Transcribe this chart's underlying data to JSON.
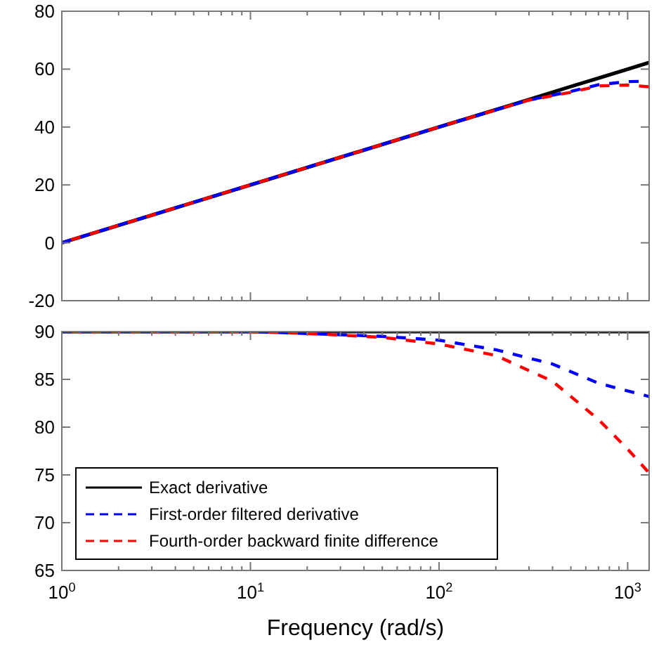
{
  "chart_data": [
    {
      "type": "line",
      "log": "x",
      "xlim": [
        1,
        1300
      ],
      "ylim": [
        -20,
        80
      ],
      "xticks": [
        {
          "value": 1,
          "label": null
        },
        {
          "value": 10,
          "label": null
        },
        {
          "value": 100,
          "label": null
        },
        {
          "value": 1000,
          "label": null
        }
      ],
      "yticks": [
        -20,
        0,
        20,
        40,
        60,
        80
      ],
      "tick_labels": "y",
      "grid": false,
      "legend": false,
      "series": [
        {
          "color": "#000000",
          "line_style": "solid",
          "x": [
            1,
            10,
            100,
            300,
            500,
            700,
            1000,
            1300
          ],
          "values": [
            0,
            20,
            40,
            49.5,
            54,
            56.9,
            60,
            62.3
          ]
        },
        {
          "color": "#0000ff",
          "line_style": "dashed",
          "x": [
            1,
            10,
            100,
            200,
            300,
            500,
            700,
            1000,
            1300
          ],
          "values": [
            0,
            20,
            40,
            45.9,
            49.3,
            52.3,
            54.6,
            55.7,
            55.8
          ]
        },
        {
          "color": "#ff0000",
          "line_style": "dashed",
          "x": [
            1,
            10,
            100,
            200,
            300,
            500,
            700,
            1000,
            1300
          ],
          "values": [
            0,
            20,
            40,
            45.9,
            49.3,
            52,
            54.2,
            54.5,
            53.9
          ]
        }
      ]
    },
    {
      "type": "line",
      "log": "x",
      "xlim": [
        1,
        1300
      ],
      "ylim": [
        65,
        90
      ],
      "xticks": [
        {
          "value": 1,
          "label": "10$^{0}$"
        },
        {
          "value": 10,
          "label": "10$^{1}$"
        },
        {
          "value": 100,
          "label": "10$^{2}$"
        },
        {
          "value": 1000,
          "label": "10$^{3}$"
        }
      ],
      "yticks": [
        65,
        70,
        75,
        80,
        85,
        90
      ],
      "xlabel": "Frequency  (rad/s)",
      "grid": false,
      "legend": "bottom left",
      "series": [
        {
          "name": "Exact derivative",
          "color": "#000000",
          "line_style": "solid",
          "x": [
            1,
            1300
          ],
          "values": [
            90,
            90
          ]
        },
        {
          "name": "First-order filtered derivative",
          "color": "#0000ff",
          "line_style": "dashed",
          "x": [
            1,
            10,
            20,
            50,
            100,
            200,
            400,
            700,
            1300
          ],
          "values": [
            90,
            90,
            89.8,
            89.5,
            89.1,
            88.1,
            86.6,
            84.6,
            83.2
          ]
        },
        {
          "name": "Fourth-order backward finite difference",
          "color": "#ff0000",
          "line_style": "dashed",
          "x": [
            1,
            10,
            20,
            50,
            100,
            200,
            400,
            700,
            1000,
            1300
          ],
          "values": [
            90,
            90,
            89.8,
            89.4,
            88.7,
            87.5,
            84.8,
            80.8,
            77.7,
            75.2
          ]
        }
      ]
    }
  ]
}
